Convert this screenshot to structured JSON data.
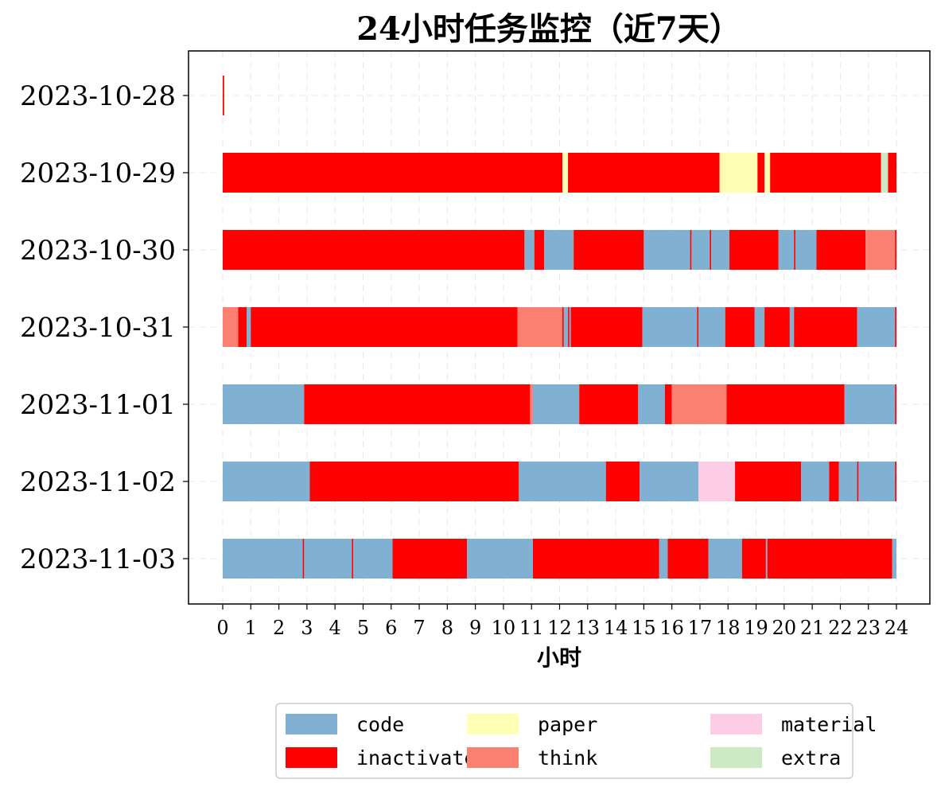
{
  "chart_data": {
    "type": "bar",
    "orientation": "horizontal-timeline",
    "title": "24小时任务监控（近7天）",
    "xlabel": "小时",
    "ylabel": "",
    "xlim": [
      0,
      24
    ],
    "xticks": [
      0,
      1,
      2,
      3,
      4,
      5,
      6,
      7,
      8,
      9,
      10,
      11,
      12,
      13,
      14,
      15,
      16,
      17,
      18,
      19,
      20,
      21,
      22,
      23,
      24
    ],
    "grid": true,
    "legend_position": "bottom-center",
    "legend": [
      {
        "name": "code",
        "color": "#80b1d3"
      },
      {
        "name": "inactivate",
        "color": "#ff0000"
      },
      {
        "name": "paper",
        "color": "#ffffb3"
      },
      {
        "name": "think",
        "color": "#fb8072"
      },
      {
        "name": "material",
        "color": "#fccde5"
      },
      {
        "name": "extra",
        "color": "#ccebc5"
      }
    ],
    "categories": [
      "2023-10-28",
      "2023-10-29",
      "2023-10-30",
      "2023-10-31",
      "2023-11-01",
      "2023-11-02",
      "2023-11-03"
    ],
    "series": [
      {
        "date": "2023-10-28",
        "segments": [
          {
            "task": "inactivate",
            "start": 0.0,
            "end": 0.05
          }
        ]
      },
      {
        "date": "2023-10-29",
        "segments": [
          {
            "task": "inactivate",
            "start": 0.0,
            "end": 12.1
          },
          {
            "task": "paper",
            "start": 12.1,
            "end": 12.3
          },
          {
            "task": "inactivate",
            "start": 12.3,
            "end": 17.7
          },
          {
            "task": "paper",
            "start": 17.7,
            "end": 19.05
          },
          {
            "task": "inactivate",
            "start": 19.05,
            "end": 19.3
          },
          {
            "task": "paper",
            "start": 19.3,
            "end": 19.5
          },
          {
            "task": "inactivate",
            "start": 19.5,
            "end": 23.45
          },
          {
            "task": "extra",
            "start": 23.45,
            "end": 23.7
          },
          {
            "task": "inactivate",
            "start": 23.7,
            "end": 24.0
          }
        ]
      },
      {
        "date": "2023-10-30",
        "segments": [
          {
            "task": "inactivate",
            "start": 0.0,
            "end": 10.75
          },
          {
            "task": "code",
            "start": 10.75,
            "end": 11.1
          },
          {
            "task": "inactivate",
            "start": 11.1,
            "end": 11.45
          },
          {
            "task": "code",
            "start": 11.45,
            "end": 12.5
          },
          {
            "task": "inactivate",
            "start": 12.5,
            "end": 15.0
          },
          {
            "task": "code",
            "start": 15.0,
            "end": 16.65
          },
          {
            "task": "inactivate",
            "start": 16.65,
            "end": 16.7
          },
          {
            "task": "code",
            "start": 16.7,
            "end": 17.35
          },
          {
            "task": "inactivate",
            "start": 17.35,
            "end": 17.4
          },
          {
            "task": "code",
            "start": 17.4,
            "end": 18.05
          },
          {
            "task": "inactivate",
            "start": 18.05,
            "end": 19.8
          },
          {
            "task": "code",
            "start": 19.8,
            "end": 20.35
          },
          {
            "task": "inactivate",
            "start": 20.35,
            "end": 20.4
          },
          {
            "task": "code",
            "start": 20.4,
            "end": 21.15
          },
          {
            "task": "inactivate",
            "start": 21.15,
            "end": 22.9
          },
          {
            "task": "think",
            "start": 22.9,
            "end": 23.95
          },
          {
            "task": "inactivate",
            "start": 23.95,
            "end": 24.0
          }
        ]
      },
      {
        "date": "2023-10-31",
        "segments": [
          {
            "task": "think",
            "start": 0.0,
            "end": 0.55
          },
          {
            "task": "inactivate",
            "start": 0.55,
            "end": 0.85
          },
          {
            "task": "code",
            "start": 0.85,
            "end": 1.0
          },
          {
            "task": "inactivate",
            "start": 1.0,
            "end": 10.5
          },
          {
            "task": "think",
            "start": 10.5,
            "end": 12.1
          },
          {
            "task": "inactivate",
            "start": 12.1,
            "end": 12.15
          },
          {
            "task": "code",
            "start": 12.15,
            "end": 12.3
          },
          {
            "task": "inactivate",
            "start": 12.3,
            "end": 12.35
          },
          {
            "task": "code",
            "start": 12.35,
            "end": 12.4
          },
          {
            "task": "inactivate",
            "start": 12.4,
            "end": 14.95
          },
          {
            "task": "code",
            "start": 14.95,
            "end": 16.9
          },
          {
            "task": "inactivate",
            "start": 16.9,
            "end": 16.95
          },
          {
            "task": "code",
            "start": 16.95,
            "end": 17.9
          },
          {
            "task": "inactivate",
            "start": 17.9,
            "end": 18.95
          },
          {
            "task": "code",
            "start": 18.95,
            "end": 19.3
          },
          {
            "task": "inactivate",
            "start": 19.3,
            "end": 20.2
          },
          {
            "task": "code",
            "start": 20.2,
            "end": 20.35
          },
          {
            "task": "inactivate",
            "start": 20.35,
            "end": 22.6
          },
          {
            "task": "code",
            "start": 22.6,
            "end": 23.95
          },
          {
            "task": "inactivate",
            "start": 23.95,
            "end": 24.0
          }
        ]
      },
      {
        "date": "2023-11-01",
        "segments": [
          {
            "task": "code",
            "start": 0.0,
            "end": 2.9
          },
          {
            "task": "inactivate",
            "start": 2.9,
            "end": 10.95
          },
          {
            "task": "think",
            "start": 10.95,
            "end": 11.05
          },
          {
            "task": "code",
            "start": 11.05,
            "end": 12.7
          },
          {
            "task": "inactivate",
            "start": 12.7,
            "end": 14.8
          },
          {
            "task": "code",
            "start": 14.8,
            "end": 15.75
          },
          {
            "task": "inactivate",
            "start": 15.75,
            "end": 16.0
          },
          {
            "task": "think",
            "start": 16.0,
            "end": 17.95
          },
          {
            "task": "inactivate",
            "start": 17.95,
            "end": 22.15
          },
          {
            "task": "code",
            "start": 22.15,
            "end": 23.95
          },
          {
            "task": "inactivate",
            "start": 23.95,
            "end": 24.0
          }
        ]
      },
      {
        "date": "2023-11-02",
        "segments": [
          {
            "task": "code",
            "start": 0.0,
            "end": 3.1
          },
          {
            "task": "inactivate",
            "start": 3.1,
            "end": 10.55
          },
          {
            "task": "code",
            "start": 10.55,
            "end": 13.65
          },
          {
            "task": "inactivate",
            "start": 13.65,
            "end": 14.85
          },
          {
            "task": "code",
            "start": 14.85,
            "end": 16.95
          },
          {
            "task": "material",
            "start": 16.95,
            "end": 18.25
          },
          {
            "task": "inactivate",
            "start": 18.25,
            "end": 20.6
          },
          {
            "task": "code",
            "start": 20.6,
            "end": 21.6
          },
          {
            "task": "inactivate",
            "start": 21.6,
            "end": 21.95
          },
          {
            "task": "code",
            "start": 21.95,
            "end": 22.6
          },
          {
            "task": "inactivate",
            "start": 22.6,
            "end": 22.65
          },
          {
            "task": "code",
            "start": 22.65,
            "end": 23.95
          },
          {
            "task": "inactivate",
            "start": 23.95,
            "end": 24.0
          }
        ]
      },
      {
        "date": "2023-11-03",
        "segments": [
          {
            "task": "code",
            "start": 0.0,
            "end": 2.85
          },
          {
            "task": "inactivate",
            "start": 2.85,
            "end": 2.9
          },
          {
            "task": "code",
            "start": 2.9,
            "end": 4.6
          },
          {
            "task": "inactivate",
            "start": 4.6,
            "end": 4.65
          },
          {
            "task": "code",
            "start": 4.65,
            "end": 6.05
          },
          {
            "task": "inactivate",
            "start": 6.05,
            "end": 8.7
          },
          {
            "task": "code",
            "start": 8.7,
            "end": 11.05
          },
          {
            "task": "inactivate",
            "start": 11.05,
            "end": 15.55
          },
          {
            "task": "code",
            "start": 15.55,
            "end": 15.85
          },
          {
            "task": "inactivate",
            "start": 15.85,
            "end": 17.3
          },
          {
            "task": "code",
            "start": 17.3,
            "end": 18.5
          },
          {
            "task": "inactivate",
            "start": 18.5,
            "end": 19.35
          },
          {
            "task": "code",
            "start": 19.35,
            "end": 19.4
          },
          {
            "task": "inactivate",
            "start": 19.4,
            "end": 23.85
          },
          {
            "task": "code",
            "start": 23.85,
            "end": 24.0
          }
        ]
      }
    ]
  }
}
